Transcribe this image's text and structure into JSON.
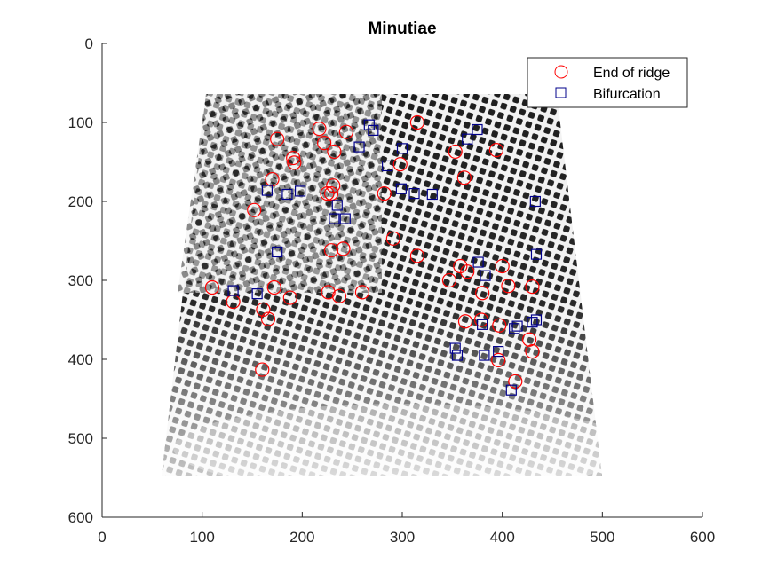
{
  "chart_data": {
    "type": "scatter",
    "title": "Minutiae",
    "xlabel": "",
    "ylabel": "",
    "xlim": [
      0,
      600
    ],
    "ylim": [
      0,
      600
    ],
    "y_axis_reversed": true,
    "x_ticks": [
      "0",
      "100",
      "200",
      "300",
      "400",
      "500",
      "600"
    ],
    "y_ticks": [
      "0",
      "100",
      "200",
      "300",
      "400",
      "500",
      "600"
    ],
    "grid": false,
    "legend_position": "top-right",
    "background_image": "fingerprint",
    "series": [
      {
        "name": "End of ridge",
        "marker": "circle",
        "color": "#ff0000",
        "points": [
          [
            217,
            108
          ],
          [
            244,
            112
          ],
          [
            315,
            100
          ],
          [
            175,
            121
          ],
          [
            222,
            126
          ],
          [
            191,
            145
          ],
          [
            192,
            151
          ],
          [
            232,
            137
          ],
          [
            353,
            137
          ],
          [
            394,
            135
          ],
          [
            298,
            153
          ],
          [
            362,
            170
          ],
          [
            170,
            172
          ],
          [
            231,
            180
          ],
          [
            225,
            190
          ],
          [
            282,
            190
          ],
          [
            229,
            190
          ],
          [
            152,
            211
          ],
          [
            291,
            247
          ],
          [
            229,
            262
          ],
          [
            241,
            260
          ],
          [
            315,
            269
          ],
          [
            358,
            282
          ],
          [
            400,
            282
          ],
          [
            347,
            300
          ],
          [
            365,
            289
          ],
          [
            110,
            309
          ],
          [
            172,
            309
          ],
          [
            406,
            307
          ],
          [
            430,
            308
          ],
          [
            226,
            315
          ],
          [
            237,
            320
          ],
          [
            260,
            315
          ],
          [
            380,
            316
          ],
          [
            131,
            327
          ],
          [
            188,
            322
          ],
          [
            161,
            337
          ],
          [
            166,
            349
          ],
          [
            363,
            352
          ],
          [
            379,
            350
          ],
          [
            397,
            357
          ],
          [
            427,
            375
          ],
          [
            430,
            390
          ],
          [
            396,
            401
          ],
          [
            413,
            428
          ],
          [
            160,
            413
          ]
        ]
      },
      {
        "name": "Bifurcation",
        "marker": "square",
        "color": "#00008b",
        "points": [
          [
            267,
            103
          ],
          [
            271,
            110
          ],
          [
            375,
            109
          ],
          [
            365,
            121
          ],
          [
            257,
            131
          ],
          [
            300,
            133
          ],
          [
            285,
            155
          ],
          [
            165,
            186
          ],
          [
            185,
            191
          ],
          [
            198,
            187
          ],
          [
            299,
            184
          ],
          [
            312,
            190
          ],
          [
            330,
            191
          ],
          [
            235,
            205
          ],
          [
            433,
            200
          ],
          [
            232,
            222
          ],
          [
            243,
            222
          ],
          [
            175,
            264
          ],
          [
            376,
            277
          ],
          [
            383,
            294
          ],
          [
            434,
            267
          ],
          [
            131,
            313
          ],
          [
            155,
            317
          ],
          [
            380,
            356
          ],
          [
            412,
            361
          ],
          [
            415,
            358
          ],
          [
            430,
            353
          ],
          [
            434,
            350
          ],
          [
            353,
            386
          ],
          [
            355,
            395
          ],
          [
            382,
            395
          ],
          [
            396,
            390
          ],
          [
            409,
            439
          ]
        ]
      }
    ]
  }
}
